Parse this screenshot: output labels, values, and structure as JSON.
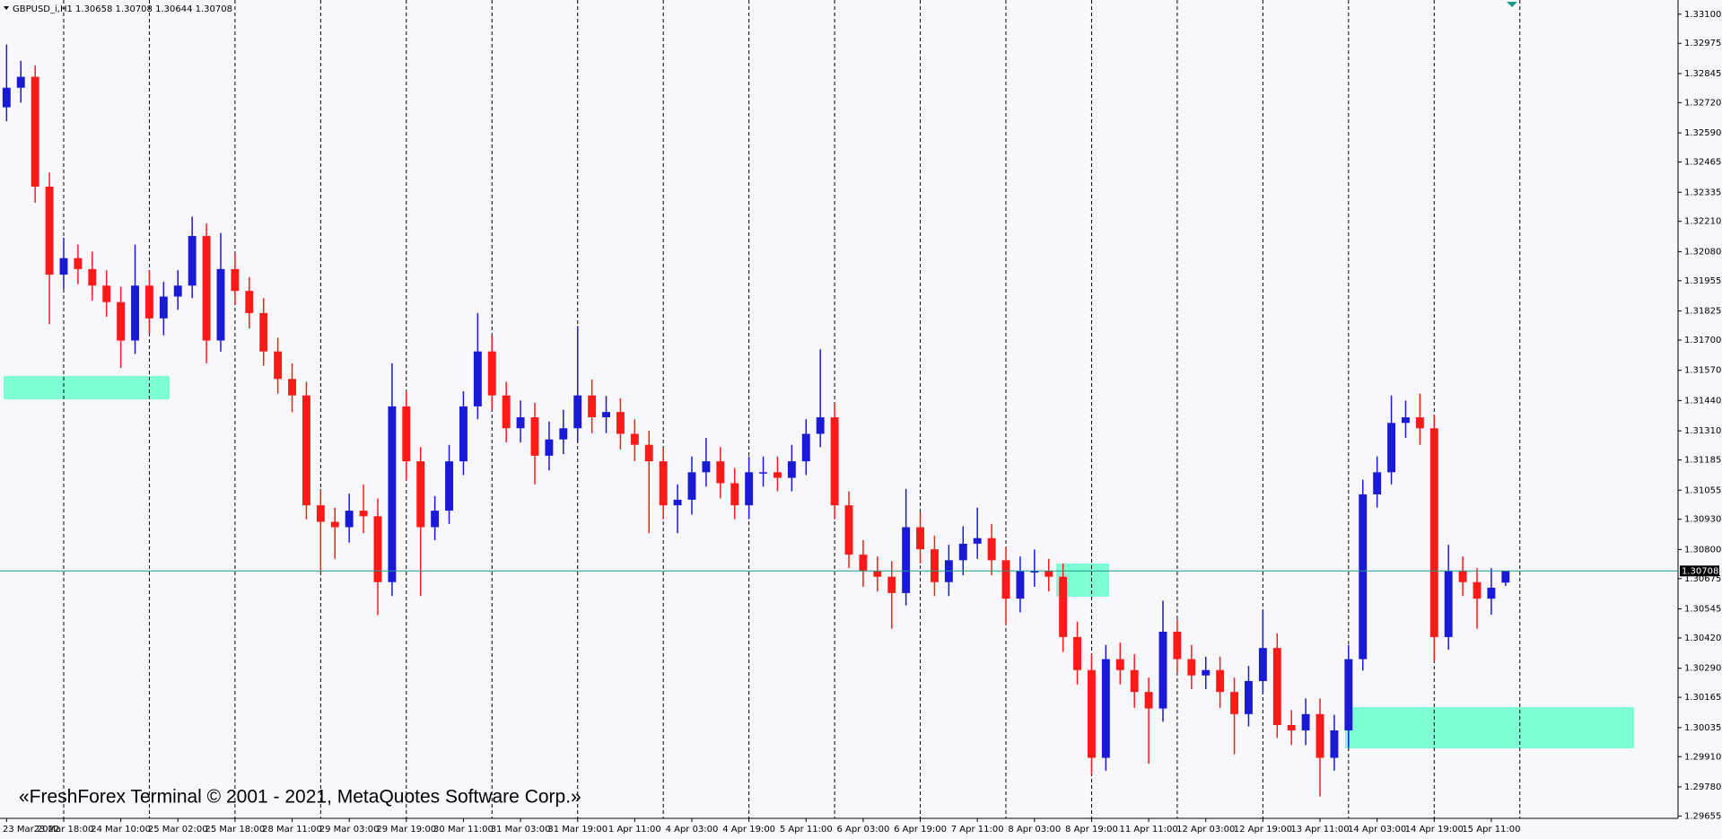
{
  "chart_data": {
    "type": "candlestick",
    "header": "GBPUSD_i,H1  1.30658 1.30708 1.30644 1.30708",
    "watermark": "«FreshForex Terminal © 2001 - 2021, MetaQuotes Software Corp.»",
    "bull_color": "#1a1ad6",
    "bear_color": "#ff1a1a",
    "price_line_color": "#1a9a86",
    "current_price": 1.30708,
    "ylim": [
      1.29645,
      1.33161
    ],
    "yticks": [
      {
        "value": 1.331,
        "label": "1.33100"
      },
      1.32975,
      1.32845,
      {
        "value": 1.3272,
        "label": "1.32720"
      },
      {
        "value": 1.3259,
        "label": "1.32590"
      },
      1.32465,
      1.32335,
      {
        "value": 1.3221,
        "label": "1.32210"
      },
      {
        "value": 1.3208,
        "label": "1.32080"
      },
      1.31955,
      1.31825,
      {
        "value": 1.317,
        "label": "1.31700"
      },
      {
        "value": 1.3157,
        "label": "1.31570"
      },
      {
        "value": 1.3144,
        "label": "1.31440"
      },
      {
        "value": 1.3131,
        "label": "1.31310"
      },
      1.31185,
      1.31055,
      {
        "value": 1.3093,
        "label": "1.30930"
      },
      {
        "value": 1.308,
        "label": "1.30800"
      },
      1.30675,
      1.30545,
      {
        "value": 1.3042,
        "label": "1.30420"
      },
      {
        "value": 1.3029,
        "label": "1.30290"
      },
      1.30165,
      1.30035,
      {
        "value": 1.2991,
        "label": "1.29910"
      },
      {
        "value": 1.2978,
        "label": "1.29780"
      },
      1.29655
    ],
    "categories": [
      "23 Mar 2022",
      null,
      null,
      null,
      "23 Mar 18:00",
      null,
      null,
      null,
      "24 Mar 10:00",
      null,
      null,
      null,
      "25 Mar 02:00",
      null,
      null,
      null,
      "25 Mar 18:00",
      null,
      null,
      null,
      "28 Mar 11:00",
      null,
      null,
      null,
      "29 Mar 03:00",
      null,
      null,
      null,
      "29 Mar 19:00",
      null,
      null,
      null,
      "30 Mar 11:00",
      null,
      null,
      null,
      "31 Mar 03:00",
      null,
      null,
      null,
      "31 Mar 19:00",
      null,
      null,
      null,
      "1 Apr 11:00",
      null,
      null,
      null,
      "4 Apr 03:00",
      null,
      null,
      null,
      "4 Apr 19:00",
      null,
      null,
      null,
      "5 Apr 11:00",
      null,
      null,
      null,
      "6 Apr 03:00",
      null,
      null,
      null,
      "6 Apr 19:00",
      null,
      null,
      null,
      "7 Apr 11:00",
      null,
      null,
      null,
      "8 Apr 03:00",
      null,
      null,
      null,
      "8 Apr 19:00",
      null,
      null,
      null,
      "11 Apr 11:00",
      null,
      null,
      null,
      "12 Apr 03:00",
      null,
      null,
      null,
      "12 Apr 19:00",
      null,
      null,
      null,
      "13 Apr 11:00",
      null,
      null,
      null,
      "14 Apr 03:00",
      null,
      null,
      null,
      "14 Apr 19:00",
      null,
      null,
      null,
      "15 Apr 11:00",
      null,
      null,
      null
    ],
    "ohlc": [
      [
        1.327,
        1.3297,
        1.3264,
        1.32784
      ],
      [
        1.32784,
        1.329,
        1.3272,
        1.32831
      ],
      [
        1.32831,
        1.3288,
        1.3229,
        1.32359
      ],
      [
        1.32359,
        1.3242,
        1.31769,
        1.31981
      ],
      [
        1.31981,
        1.3214,
        1.3192,
        1.32052
      ],
      [
        1.32052,
        1.3211,
        1.3194,
        1.32005
      ],
      [
        1.32005,
        1.3208,
        1.3187,
        1.31934
      ],
      [
        1.31934,
        1.32,
        1.318,
        1.31863
      ],
      [
        1.31863,
        1.3193,
        1.3158,
        1.31698
      ],
      [
        1.31698,
        1.3211,
        1.3164,
        1.31934
      ],
      [
        1.31934,
        1.32,
        1.3173,
        1.31793
      ],
      [
        1.31793,
        1.3195,
        1.3172,
        1.31887
      ],
      [
        1.31887,
        1.32,
        1.3183,
        1.31934
      ],
      [
        1.31934,
        1.3223,
        1.3188,
        1.32147
      ],
      [
        1.32147,
        1.322,
        1.316,
        1.31698
      ],
      [
        1.31698,
        1.3216,
        1.3165,
        1.32005
      ],
      [
        1.32005,
        1.3207,
        1.3185,
        1.31911
      ],
      [
        1.31911,
        1.3197,
        1.3175,
        1.31816
      ],
      [
        1.31816,
        1.3188,
        1.3159,
        1.31651
      ],
      [
        1.31651,
        1.3171,
        1.3147,
        1.31533
      ],
      [
        1.31533,
        1.316,
        1.3139,
        1.31462
      ],
      [
        1.31462,
        1.3152,
        1.3093,
        1.3099
      ],
      [
        1.3099,
        1.3106,
        1.307,
        1.30919
      ],
      [
        1.30919,
        1.3098,
        1.3076,
        1.30896
      ],
      [
        1.30896,
        1.3104,
        1.3083,
        1.30967
      ],
      [
        1.30967,
        1.3108,
        1.3087,
        1.30943
      ],
      [
        1.30943,
        1.3102,
        1.30518,
        1.3066
      ],
      [
        1.3066,
        1.316,
        1.306,
        1.31415
      ],
      [
        1.31415,
        1.3148,
        1.311,
        1.31179
      ],
      [
        1.31179,
        1.3124,
        1.306,
        1.30896
      ],
      [
        1.30896,
        1.3103,
        1.3084,
        1.30967
      ],
      [
        1.30967,
        1.3125,
        1.3091,
        1.31179
      ],
      [
        1.31179,
        1.3148,
        1.3112,
        1.31415
      ],
      [
        1.31415,
        1.31816,
        1.3136,
        1.31651
      ],
      [
        1.31651,
        1.3172,
        1.314,
        1.31462
      ],
      [
        1.31462,
        1.3152,
        1.3126,
        1.31321
      ],
      [
        1.31321,
        1.3144,
        1.3126,
        1.31368
      ],
      [
        1.31368,
        1.3143,
        1.3108,
        1.31203
      ],
      [
        1.31203,
        1.3135,
        1.3114,
        1.31273
      ],
      [
        1.31273,
        1.314,
        1.3121,
        1.31321
      ],
      [
        1.31321,
        1.3176,
        1.3126,
        1.31462
      ],
      [
        1.31462,
        1.3153,
        1.313,
        1.31368
      ],
      [
        1.31368,
        1.3146,
        1.313,
        1.31391
      ],
      [
        1.31391,
        1.3145,
        1.3123,
        1.31297
      ],
      [
        1.31297,
        1.3136,
        1.3118,
        1.3125
      ],
      [
        1.3125,
        1.3131,
        1.3087,
        1.31179
      ],
      [
        1.31179,
        1.3124,
        1.3093,
        1.3099
      ],
      [
        1.3099,
        1.3108,
        1.3087,
        1.31014
      ],
      [
        1.31014,
        1.312,
        1.3095,
        1.31132
      ],
      [
        1.31132,
        1.3128,
        1.3107,
        1.31179
      ],
      [
        1.31179,
        1.3124,
        1.3102,
        1.31085
      ],
      [
        1.31085,
        1.3115,
        1.3093,
        1.3099
      ],
      [
        1.3099,
        1.312,
        1.3093,
        1.31132
      ],
      [
        1.31132,
        1.312,
        1.3107,
        1.31132
      ],
      [
        1.31132,
        1.312,
        1.3105,
        1.31108
      ],
      [
        1.31108,
        1.3125,
        1.3105,
        1.31179
      ],
      [
        1.31179,
        1.3136,
        1.3112,
        1.31297
      ],
      [
        1.31297,
        1.3166,
        1.3124,
        1.31368
      ],
      [
        1.31368,
        1.3143,
        1.3093,
        1.3099
      ],
      [
        1.3099,
        1.3105,
        1.3072,
        1.30778
      ],
      [
        1.30778,
        1.3084,
        1.3064,
        1.30707
      ],
      [
        1.30707,
        1.3077,
        1.3062,
        1.30683
      ],
      [
        1.30683,
        1.3075,
        1.3046,
        1.30613
      ],
      [
        1.30613,
        1.3106,
        1.3056,
        1.30896
      ],
      [
        1.30896,
        1.3096,
        1.3074,
        1.30801
      ],
      [
        1.30801,
        1.3086,
        1.306,
        1.3066
      ],
      [
        1.3066,
        1.3082,
        1.306,
        1.30754
      ],
      [
        1.30754,
        1.309,
        1.3069,
        1.30825
      ],
      [
        1.30825,
        1.3098,
        1.3076,
        1.30849
      ],
      [
        1.30849,
        1.3091,
        1.3069,
        1.30754
      ],
      [
        1.30754,
        1.3081,
        1.3048,
        1.30589
      ],
      [
        1.30589,
        1.3077,
        1.3053,
        1.30707
      ],
      [
        1.30707,
        1.308,
        1.3064,
        1.30707
      ],
      [
        1.30707,
        1.3076,
        1.3062,
        1.30683
      ],
      [
        1.30683,
        1.3074,
        1.3036,
        1.30424
      ],
      [
        1.30424,
        1.3049,
        1.3022,
        1.30282
      ],
      [
        1.30282,
        1.3035,
        1.29834,
        1.29905
      ],
      [
        1.29905,
        1.3039,
        1.2985,
        1.30329
      ],
      [
        1.30329,
        1.304,
        1.3022,
        1.30282
      ],
      [
        1.30282,
        1.3035,
        1.3012,
        1.30188
      ],
      [
        1.30188,
        1.3025,
        1.2988,
        1.30117
      ],
      [
        1.30117,
        1.3058,
        1.3006,
        1.30447
      ],
      [
        1.30447,
        1.305,
        1.3027,
        1.30329
      ],
      [
        1.30329,
        1.3039,
        1.302,
        1.30259
      ],
      [
        1.30259,
        1.3034,
        1.302,
        1.30282
      ],
      [
        1.30282,
        1.3034,
        1.3012,
        1.30188
      ],
      [
        1.30188,
        1.3025,
        1.2992,
        1.30093
      ],
      [
        1.30093,
        1.303,
        1.3004,
        1.30235
      ],
      [
        1.30235,
        1.3054,
        1.3018,
        1.30377
      ],
      [
        1.30377,
        1.3044,
        1.2999,
        1.30046
      ],
      [
        1.30046,
        1.3011,
        1.2996,
        1.30023
      ],
      [
        1.30023,
        1.3016,
        1.2996,
        1.30093
      ],
      [
        1.30093,
        1.3016,
        1.29739,
        1.29905
      ],
      [
        1.29905,
        1.3009,
        1.2985,
        1.30023
      ],
      [
        1.30023,
        1.3039,
        1.2995,
        1.30329
      ],
      [
        1.30329,
        1.311,
        1.3028,
        1.31037
      ],
      [
        1.31037,
        1.312,
        1.3098,
        1.31132
      ],
      [
        1.31132,
        1.31462,
        1.3108,
        1.31344
      ],
      [
        1.31344,
        1.3144,
        1.3128,
        1.31368
      ],
      [
        1.31368,
        1.3147,
        1.3125,
        1.31321
      ],
      [
        1.31321,
        1.3138,
        1.3032,
        1.30424
      ],
      [
        1.30424,
        1.3082,
        1.3037,
        1.30707
      ],
      [
        1.30707,
        1.3077,
        1.306,
        1.3066
      ],
      [
        1.3066,
        1.3072,
        1.3046,
        1.30589
      ],
      [
        1.30589,
        1.3072,
        1.3052,
        1.30636
      ],
      [
        1.30658,
        1.30708,
        1.30644,
        1.30708
      ],
      null,
      null
    ]
  }
}
